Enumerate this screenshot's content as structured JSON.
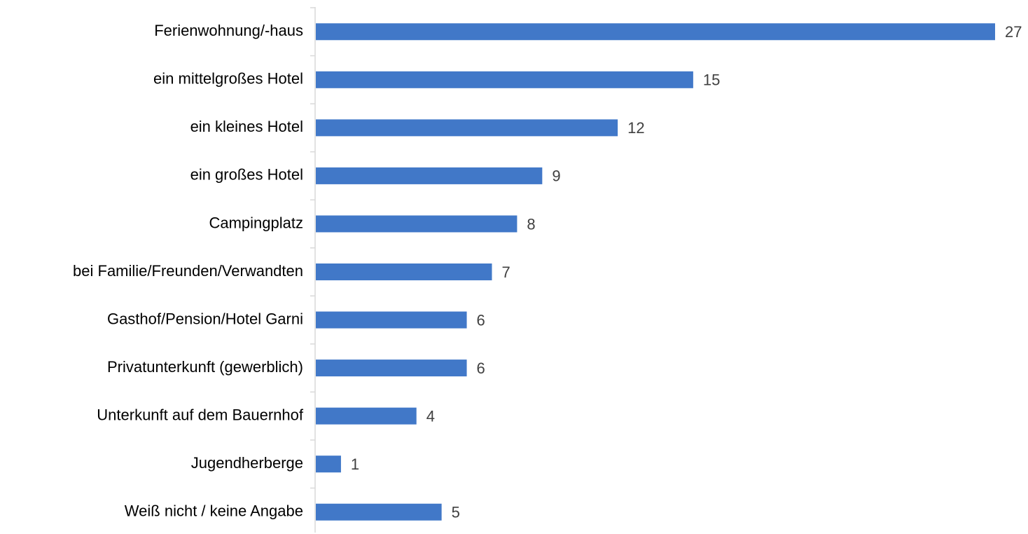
{
  "chart_data": {
    "type": "bar",
    "orientation": "horizontal",
    "categories": [
      "Ferienwohnung/-haus",
      "ein mittelgroßes Hotel",
      "ein kleines Hotel",
      "ein großes Hotel",
      "Campingplatz",
      "bei Familie/Freunden/Verwandten",
      "Gasthof/Pension/Hotel Garni",
      "Privatunterkunft (gewerblich)",
      "Unterkunft auf dem Bauernhof",
      "Jugendherberge",
      "Weiß nicht / keine Angabe"
    ],
    "values": [
      27,
      15,
      12,
      9,
      8,
      7,
      6,
      6,
      4,
      1,
      5
    ],
    "color": "#4178c8"
  }
}
